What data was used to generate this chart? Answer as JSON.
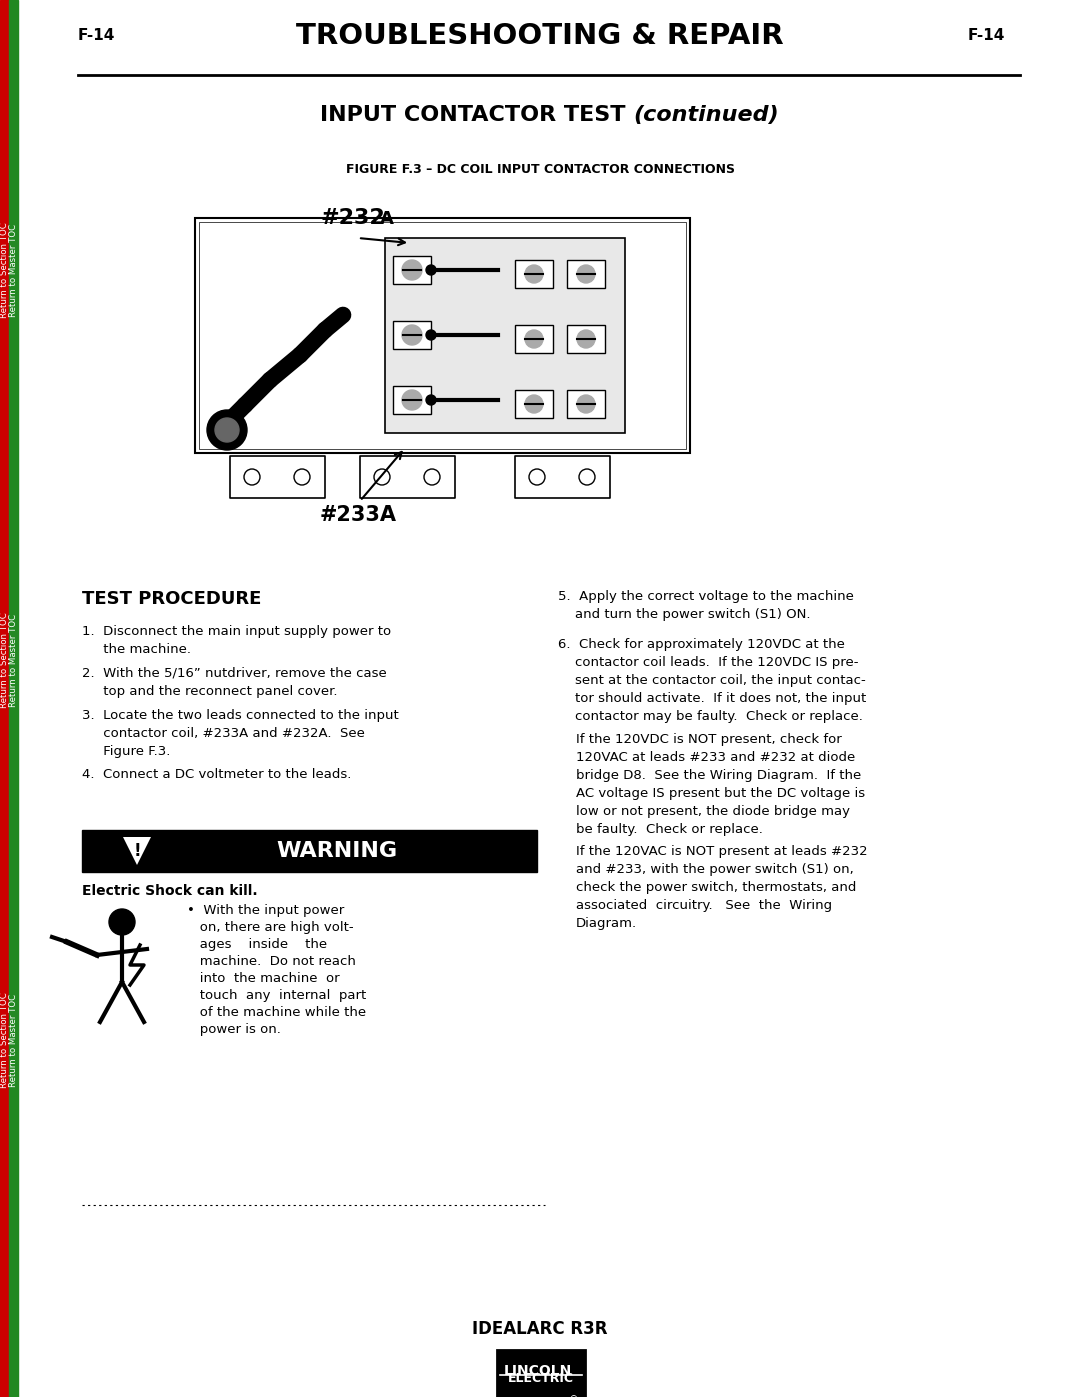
{
  "page_label": "F-14",
  "title": "TROUBLESHOOTING & REPAIR",
  "section_bold": "INPUT CONTACTOR TEST ",
  "section_italic": "(continued)",
  "figure_label": "FIGURE F.3 – DC COIL INPUT CONTACTOR CONNECTIONS",
  "label_232": "#232",
  "label_232a": "A",
  "label_233a": "#233A",
  "test_proc_title": "TEST PROCEDURE",
  "step1": "1.  Disconnect the main input supply power to\n     the machine.",
  "step2": "2.  With the 5/16” nutdriver, remove the case\n     top and the reconnect panel cover.",
  "step3": "3.  Locate the two leads connected to the input\n     contactor coil, #233A and #232A.  See\n     Figure F.3.",
  "step4": "4.  Connect a DC voltmeter to the leads.",
  "warn_title": "WARNING",
  "warn_shock": "Electric Shock can kill.",
  "warn_bullet": "•  With the input power\n   on, there are high volt-\n   ages    inside    the\n   machine.  Do not reach\n   into  the machine  or\n   touch  any  internal  part\n   of the machine while the\n   power is on.",
  "r5": "5.  Apply the correct voltage to the machine\n    and turn the power switch (S1) ON.",
  "r6": "6.  Check for approximately 120VDC at the\n    contactor coil leads.  If the 120VDC IS pre-\n    sent at the contactor coil, the input contac-\n    tor should activate.  If it does not, the input\n    contactor may be faulty.  Check or replace.",
  "r6b": "If the 120VDC is NOT present, check for\n120VAC at leads #233 and #232 at diode\nbridge D8.  See the Wiring Diagram.  If the\nAC voltage IS present but the DC voltage is\nlow or not present, the diode bridge may\nbe faulty.  Check or replace.",
  "r6c": "If the 120VAC is NOT present at leads #232\nand #233, with the power switch (S1) on,\ncheck the power switch, thermostats, and\nassociated  circuitry.   See  the  Wiring\nDiagram.",
  "footer": "IDEALARC R3R",
  "red": "#cc0000",
  "green": "#228822",
  "black": "#000000",
  "white": "#ffffff",
  "ltgray": "#e8e8e8",
  "mdgray": "#aaaaaa",
  "dkgray": "#555555"
}
